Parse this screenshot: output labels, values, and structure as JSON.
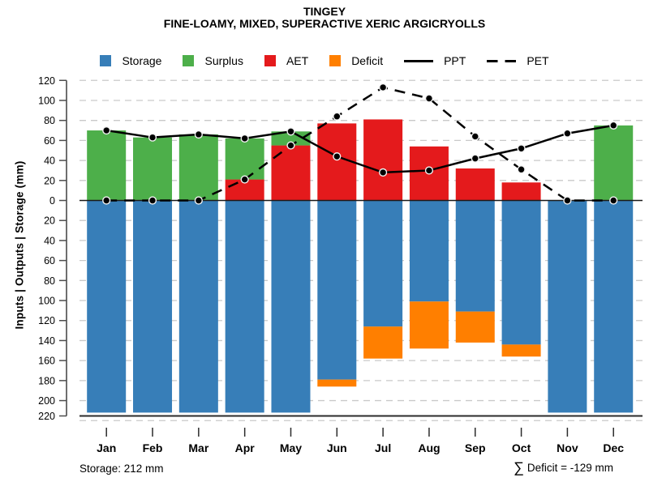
{
  "header": {
    "title": "TINGEY",
    "subtitle": "FINE-LOAMY, MIXED, SUPERACTIVE XERIC ARGICRYOLLS"
  },
  "legend": {
    "items": [
      {
        "label": "Storage",
        "swatch": "square",
        "color": "#377EB8"
      },
      {
        "label": "Surplus",
        "swatch": "square",
        "color": "#4DAF4A"
      },
      {
        "label": "AET",
        "swatch": "square",
        "color": "#E41A1C"
      },
      {
        "label": "Deficit",
        "swatch": "square",
        "color": "#FF7F00"
      },
      {
        "label": "PPT",
        "swatch": "line-solid",
        "color": "#000000"
      },
      {
        "label": "PET",
        "swatch": "line-dashed",
        "color": "#000000"
      }
    ]
  },
  "y_axis": {
    "label": "Inputs | Outputs | Storage   (mm)",
    "max": 120,
    "min": -220,
    "tick_step": 20,
    "tick_labels_absolute": true
  },
  "footer": {
    "storage_note": "Storage: 212 mm",
    "sigma": "∑",
    "deficit_note": "Deficit = -129 mm"
  },
  "chart_data": {
    "type": "bar",
    "title": "TINGEY",
    "subtitle": "FINE-LOAMY, MIXED, SUPERACTIVE XERIC ARGICRYOLLS",
    "ylabel": "Inputs | Outputs | Storage (mm)",
    "ylim": [
      -220,
      120
    ],
    "grid": true,
    "legend_position": "top",
    "categories": [
      "Jan",
      "Feb",
      "Mar",
      "Apr",
      "May",
      "Jun",
      "Jul",
      "Aug",
      "Sep",
      "Oct",
      "Nov",
      "Dec"
    ],
    "series": [
      {
        "name": "AET",
        "type": "bar",
        "stack": "up",
        "order": 1,
        "color": "#E41A1C",
        "values": [
          0,
          0,
          0,
          21,
          55,
          77,
          81,
          54,
          32,
          18,
          0,
          0
        ]
      },
      {
        "name": "Surplus",
        "type": "bar",
        "stack": "up",
        "order": 2,
        "color": "#4DAF4A",
        "values": [
          70,
          63,
          66,
          41,
          14,
          0,
          0,
          0,
          0,
          0,
          0,
          75
        ]
      },
      {
        "name": "Storage",
        "type": "bar",
        "stack": "down",
        "order": 1,
        "color": "#377EB8",
        "values": [
          212,
          212,
          212,
          212,
          212,
          179,
          126,
          101,
          111,
          144,
          212,
          212
        ]
      },
      {
        "name": "Deficit",
        "type": "bar",
        "stack": "down",
        "order": 2,
        "color": "#FF7F00",
        "values": [
          0,
          0,
          0,
          0,
          0,
          7,
          32,
          47,
          31,
          12,
          0,
          0
        ]
      },
      {
        "name": "PPT",
        "type": "line",
        "style": "solid",
        "color": "#000000",
        "values": [
          70,
          63,
          66,
          62,
          69,
          44,
          28,
          30,
          42,
          52,
          67,
          75
        ]
      },
      {
        "name": "PET",
        "type": "line",
        "style": "dashed",
        "color": "#000000",
        "values": [
          0,
          0,
          0,
          21,
          55,
          84,
          113,
          102,
          64,
          31,
          0,
          0
        ]
      }
    ]
  }
}
